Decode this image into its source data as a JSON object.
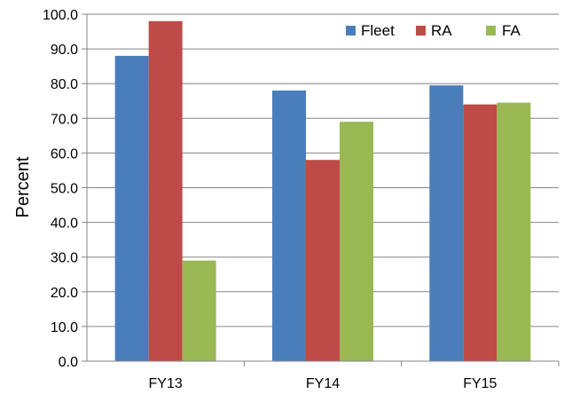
{
  "chart_data": {
    "type": "bar",
    "categories": [
      "FY13",
      "FY14",
      "FY15"
    ],
    "series": [
      {
        "name": "Fleet",
        "values": [
          88.0,
          78.0,
          79.5
        ],
        "color": "#4a7ebb"
      },
      {
        "name": "RA",
        "values": [
          98.0,
          58.0,
          74.0
        ],
        "color": "#be4b48"
      },
      {
        "name": "FA",
        "values": [
          29.0,
          69.0,
          74.5
        ],
        "color": "#98b954"
      }
    ],
    "yticks": [
      "0.0",
      "10.0",
      "20.0",
      "30.0",
      "40.0",
      "50.0",
      "60.0",
      "70.0",
      "80.0",
      "90.0",
      "100.0"
    ],
    "ylabel": "Percent",
    "xlabel": "",
    "title": "",
    "ylim": [
      0,
      100
    ],
    "grid": true,
    "legend_position": "top-right"
  }
}
